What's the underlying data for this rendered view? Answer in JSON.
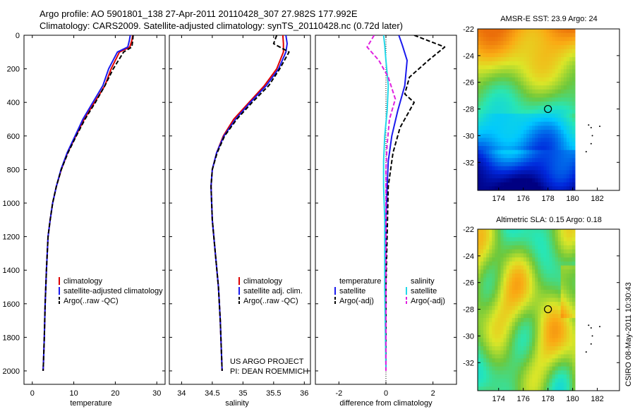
{
  "header": {
    "line1": "Argo profile: AO 5901801_138 27-Apr-2011 20110428_307 27.982S 177.992E",
    "line2": "Climatology: CARS2009. Satellite-adjusted climatology: synTS_20110428.nc (0.72d later)"
  },
  "credits": {
    "project": "US ARGO PROJECT",
    "pi": "PI: DEAN ROEMMICH",
    "stamp": "CSIRO 08-May-2011 10:30:43"
  },
  "colors": {
    "climatology": "#dd0000",
    "satellite": "#1a1aee",
    "argo": "#000000",
    "salt_satellite": "#22d8e8",
    "salt_argo": "#e020e0"
  },
  "chart_data": [
    {
      "type": "line",
      "panel": "temperature",
      "xlabel": "temperature",
      "xlim": [
        -2,
        32
      ],
      "ylim": [
        0,
        2080
      ],
      "y_inverted": true,
      "xticks": [
        0,
        10,
        20,
        30
      ],
      "yticks": [
        0,
        200,
        400,
        600,
        800,
        1000,
        1200,
        1400,
        1600,
        1800,
        2000
      ],
      "legend": [
        "climatology",
        "satellite-adjusted climatology",
        "Argo(..raw -QC)"
      ],
      "legend_placement": "lower-right",
      "series": [
        {
          "name": "climatology",
          "x": [
            24.2,
            24.0,
            23.5,
            21.0,
            19.0,
            17.5,
            15.0,
            12.5,
            10.5,
            8.5,
            7.0,
            5.8,
            4.9,
            4.3,
            3.8,
            3.4,
            3.1,
            2.9,
            2.7,
            2.6
          ],
          "y": [
            0,
            30,
            70,
            100,
            200,
            300,
            400,
            500,
            600,
            700,
            800,
            900,
            1000,
            1100,
            1200,
            1400,
            1600,
            1800,
            1950,
            2000
          ]
        },
        {
          "name": "satellite-adjusted climatology",
          "x": [
            23.6,
            23.4,
            23.0,
            20.5,
            18.4,
            17.0,
            14.6,
            12.2,
            10.3,
            8.4,
            6.9,
            5.8,
            4.9,
            4.3,
            3.8,
            3.4,
            3.1,
            2.9,
            2.7,
            2.6
          ],
          "y": [
            0,
            30,
            70,
            100,
            200,
            300,
            400,
            500,
            600,
            700,
            800,
            900,
            1000,
            1100,
            1200,
            1400,
            1600,
            1800,
            1950,
            2000
          ]
        },
        {
          "name": "Argo(..raw -QC)",
          "x": [
            24.3,
            24.2,
            24.0,
            22.0,
            19.5,
            17.5,
            15.2,
            12.7,
            10.6,
            8.6,
            7.0,
            5.8,
            4.9,
            4.3,
            3.8,
            3.4,
            3.1,
            2.9,
            2.7,
            2.6
          ],
          "y": [
            0,
            30,
            70,
            100,
            200,
            300,
            400,
            500,
            600,
            700,
            800,
            900,
            1000,
            1100,
            1200,
            1400,
            1600,
            1800,
            1950,
            2000
          ]
        }
      ]
    },
    {
      "type": "line",
      "panel": "salinity",
      "xlabel": "salinity",
      "xlim": [
        33.8,
        36.1
      ],
      "ylim": [
        0,
        2080
      ],
      "y_inverted": true,
      "xticks": [
        34,
        34.5,
        35,
        35.5,
        36
      ],
      "legend": [
        "climatology",
        "satellite adj. clim.",
        "Argo(..raw -QC)"
      ],
      "legend_placement": "lower-right",
      "series": [
        {
          "name": "climatology",
          "x": [
            35.65,
            35.66,
            35.66,
            35.55,
            35.35,
            35.1,
            34.85,
            34.68,
            34.57,
            34.5,
            34.48,
            34.5,
            34.55,
            34.6,
            34.63,
            34.66
          ],
          "y": [
            0,
            50,
            100,
            200,
            300,
            400,
            500,
            600,
            700,
            800,
            900,
            1100,
            1300,
            1500,
            1700,
            2000
          ]
        },
        {
          "name": "satellite adj. clim.",
          "x": [
            35.7,
            35.72,
            35.7,
            35.58,
            35.38,
            35.12,
            34.88,
            34.69,
            34.57,
            34.5,
            34.48,
            34.5,
            34.55,
            34.6,
            34.63,
            34.66
          ],
          "y": [
            0,
            50,
            100,
            200,
            300,
            400,
            500,
            600,
            700,
            800,
            900,
            1100,
            1300,
            1500,
            1700,
            2000
          ]
        },
        {
          "name": "Argo(..raw -QC)",
          "x": [
            35.55,
            35.5,
            35.75,
            35.6,
            35.42,
            35.15,
            34.9,
            34.7,
            34.58,
            34.5,
            34.48,
            34.5,
            34.55,
            34.6,
            34.63,
            34.66
          ],
          "y": [
            0,
            50,
            100,
            200,
            300,
            400,
            500,
            600,
            700,
            800,
            900,
            1100,
            1300,
            1500,
            1700,
            2000
          ]
        }
      ]
    },
    {
      "type": "line",
      "panel": "difference",
      "xlabel": "difference from climatology",
      "xlim": [
        -3.0,
        3.0
      ],
      "ylim": [
        0,
        2080
      ],
      "y_inverted": true,
      "xticks": [
        -2,
        0,
        2
      ],
      "legend_headers": [
        "temperature",
        "salinity"
      ],
      "legend": [
        "satellite",
        "Argo(-adj)",
        "satellite",
        "Argo(-adj)"
      ],
      "legend_placement": "lower-right",
      "series": [
        {
          "name": "satellite",
          "quantity": "temperature",
          "x": [
            0.55,
            0.7,
            0.9,
            0.8,
            0.5,
            0.25,
            0.1,
            0.05,
            0.0,
            0.0,
            0.0
          ],
          "y": [
            0,
            60,
            150,
            300,
            450,
            600,
            750,
            900,
            1100,
            1500,
            2000
          ]
        },
        {
          "name": "Argo(-adj)",
          "quantity": "temperature",
          "x": [
            1.2,
            2.5,
            1.8,
            1.0,
            0.8,
            1.2,
            0.6,
            0.3,
            0.1,
            0.0,
            0.0
          ],
          "y": [
            0,
            70,
            150,
            250,
            350,
            400,
            550,
            700,
            900,
            1500,
            2000
          ]
        },
        {
          "name": "satellite",
          "quantity": "salinity",
          "x": [
            -0.1,
            -0.05,
            0.0,
            0.1,
            0.05,
            -0.05,
            -0.1,
            -0.1,
            -0.05,
            -0.05,
            0.0
          ],
          "y": [
            0,
            60,
            150,
            300,
            450,
            600,
            750,
            900,
            1100,
            1500,
            2000
          ]
        },
        {
          "name": "Argo(-adj)",
          "quantity": "salinity",
          "x": [
            -0.5,
            -0.8,
            -0.3,
            0.1,
            0.4,
            0.15,
            0.05,
            0.0,
            0.0,
            0.0,
            0.0
          ],
          "y": [
            0,
            70,
            150,
            250,
            380,
            500,
            650,
            800,
            1000,
            1500,
            2000
          ]
        }
      ]
    },
    {
      "type": "heatmap",
      "panel": "sst-map",
      "title": "AMSR-E SST: 23.9 Argo: 24",
      "xlim": [
        172.3,
        183.8
      ],
      "ylim": [
        -34.1,
        -22
      ],
      "xticks": [
        174,
        176,
        178,
        180,
        182
      ],
      "yticks": [
        -22,
        -24,
        -26,
        -28,
        -30,
        -32
      ],
      "marker": {
        "lon": 178.0,
        "lat": -28.0
      }
    },
    {
      "type": "heatmap",
      "panel": "sla-map",
      "title": "Altimetric SLA: 0.15 Argo: 0.18",
      "xlim": [
        172.3,
        183.8
      ],
      "ylim": [
        -34.1,
        -22
      ],
      "xticks": [
        174,
        176,
        178,
        180,
        182
      ],
      "yticks": [
        -22,
        -24,
        -26,
        -28,
        -30,
        -32
      ],
      "marker": {
        "lon": 178.0,
        "lat": -28.0
      }
    }
  ]
}
